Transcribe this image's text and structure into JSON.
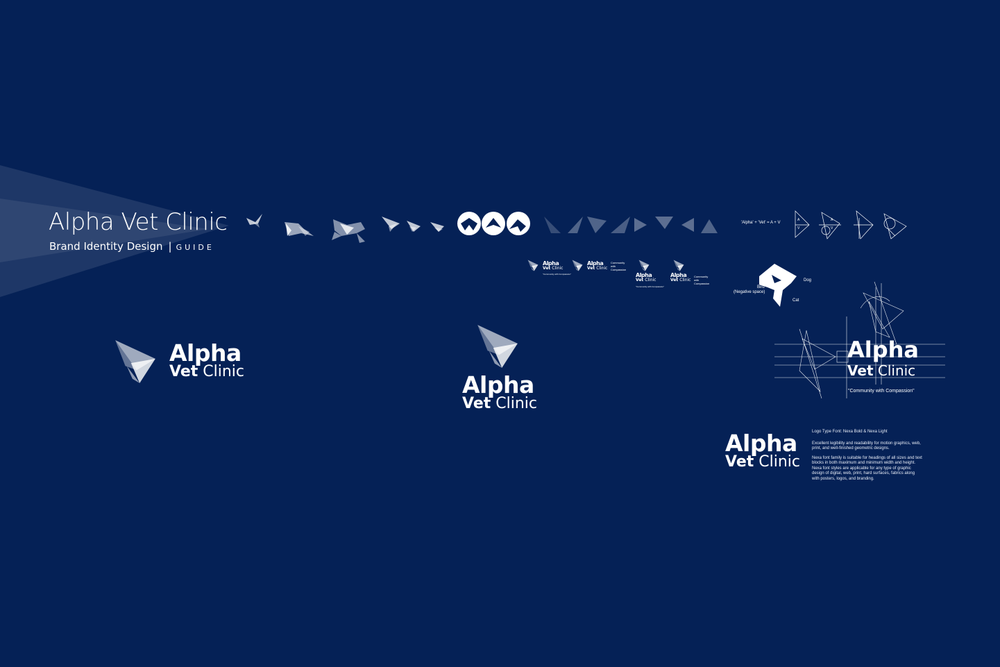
{
  "header": {
    "title": "Alpha Vet Clinic",
    "subtitle": "Brand Identity Design",
    "separator": "|",
    "guide": "GUIDE"
  },
  "wordmark": {
    "alpha": "Alpha",
    "vet": "Vet",
    "clinic": "Clinic"
  },
  "tagline": "\"Community with Compassion\"",
  "tagline_stacked": [
    "Community",
    "with",
    "Compassion"
  ],
  "concept_equation": "'Alpha' + 'Vet' = A + V",
  "concept_letters": {
    "a": "A",
    "v": "V"
  },
  "negative_space": {
    "bird": "Bird",
    "bird_note": "(Negative space)",
    "dog": "Dog",
    "cat": "Cat"
  },
  "typography": {
    "font_line": "Logo Type Font: Nexa Bold & Nexa Light",
    "para1": "Excellent legibility and readability for motion graphics, web, print, and well-finished geometric designs.",
    "para2": "Nexa font family is suitable for headings of all sizes and text blocks in both maximum and minimum width and height. Nexa font styles are applicable for any type of graphic design of digital, web, print, hard surfaces, fabrics along with posters, logos, and branding."
  },
  "colors": {
    "background": "#052156",
    "foreground": "#ffffff"
  }
}
